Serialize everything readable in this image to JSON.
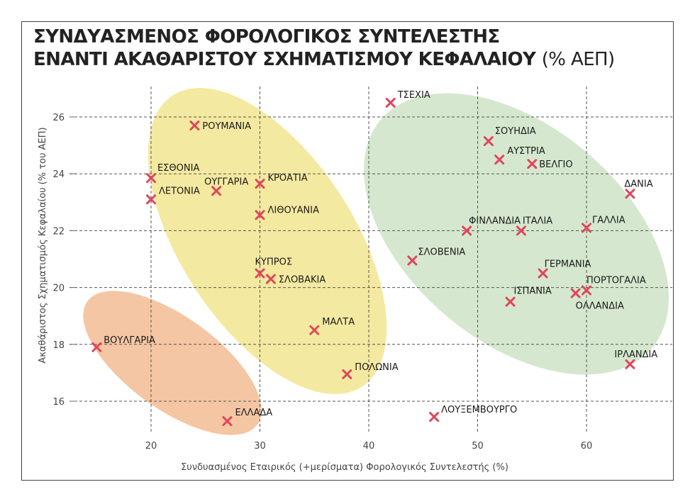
{
  "title": {
    "line1": "ΣΥΝΔΥΑΣΜΕΝΟΣ ΦΟΡΟΛΟΓΙΚΟΣ ΣΥΝΤΕΛΕΣΤΗΣ",
    "line2": "ΕΝΑΝΤΙ ΑΚΑΘΑΡΙΣΤΟΥ ΣΧΗΜΑΤΙΣΜΟΥ ΚΕΦΑΛΑΙΟΥ",
    "unit": "(% ΑΕΠ)"
  },
  "chart_data": {
    "type": "scatter",
    "xlabel": "Συνδυασμένος Εταιρικός (+μερίσματα) Φορολογικός Συντελεστής (%)",
    "ylabel": "Ακαθάριστος Σχηματισμός Κεφαλαίου (% του ΑΕΠ)",
    "xlim": [
      15,
      65
    ],
    "ylim": [
      15,
      27
    ],
    "xticks": [
      20,
      30,
      40,
      50,
      60
    ],
    "yticks": [
      16,
      18,
      20,
      22,
      24,
      26
    ],
    "grid": true,
    "marker_color": "#e0475c",
    "points": [
      {
        "label": "ΡΟΥΜΑΝΙΑ",
        "x": 24,
        "y": 25.7
      },
      {
        "label": "ΕΣΘΟΝΙΑ",
        "x": 20,
        "y": 23.85
      },
      {
        "label": "ΛΕΤΟΝΙΑ",
        "x": 20,
        "y": 23.1
      },
      {
        "label": "ΟΥΓΓΑΡΙΑ",
        "x": 26,
        "y": 23.4
      },
      {
        "label": "ΚΡΟΑΤΙΑ",
        "x": 30,
        "y": 23.65
      },
      {
        "label": "ΛΙΘΟΥΑΝΙΑ",
        "x": 30,
        "y": 22.55
      },
      {
        "label": "ΚΥΠΡΟΣ",
        "x": 30,
        "y": 20.5
      },
      {
        "label": "ΣΛΟΒΑΚΙΑ",
        "x": 31,
        "y": 20.3
      },
      {
        "label": "ΜΑΛΤΑ",
        "x": 35,
        "y": 18.5
      },
      {
        "label": "ΠΟΛΩΝΙΑ",
        "x": 38,
        "y": 16.95
      },
      {
        "label": "ΒΟΥΛΓΑΡΙΑ",
        "x": 15,
        "y": 17.9
      },
      {
        "label": "ΕΛΛΑΔΑ",
        "x": 27,
        "y": 15.3
      },
      {
        "label": "ΤΣΕΧΙΑ",
        "x": 42,
        "y": 26.5
      },
      {
        "label": "ΣΟΥΗΔΙΑ",
        "x": 51,
        "y": 25.15
      },
      {
        "label": "ΑΥΣΤΡΙΑ",
        "x": 52,
        "y": 24.5
      },
      {
        "label": "ΒΕΛΓΙΟ",
        "x": 55,
        "y": 24.35
      },
      {
        "label": "ΔΑΝΙΑ",
        "x": 64,
        "y": 23.3
      },
      {
        "label": "ΦΙΝΛΑΝΔΙΑ",
        "x": 49,
        "y": 22.0
      },
      {
        "label": "ΙΤΑΛΙΑ",
        "x": 54,
        "y": 22.0
      },
      {
        "label": "ΓΑΛΛΙΑ",
        "x": 60,
        "y": 22.1
      },
      {
        "label": "ΣΛΟΒΕΝΙΑ",
        "x": 44,
        "y": 20.95
      },
      {
        "label": "ΓΕΡΜΑΝΙΑ",
        "x": 56,
        "y": 20.5
      },
      {
        "label": "ΠΟΡΤΟΓΑΛΙΑ",
        "x": 60,
        "y": 19.9
      },
      {
        "label": "ΟΛΛΑΝΔΙΑ",
        "x": 59,
        "y": 19.8
      },
      {
        "label": "ΙΣΠΑΝΙΑ",
        "x": 53,
        "y": 19.5
      },
      {
        "label": "ΙΡΛΑΝΔΙΑ",
        "x": 64,
        "y": 17.3
      },
      {
        "label": "ΛΟΥΞΕΜΒΟΥΡΓΟ",
        "x": 46,
        "y": 15.45
      }
    ],
    "cluster_colors": [
      "#f4e9a0",
      "#d5e8cf",
      "#f5c6a3"
    ]
  }
}
